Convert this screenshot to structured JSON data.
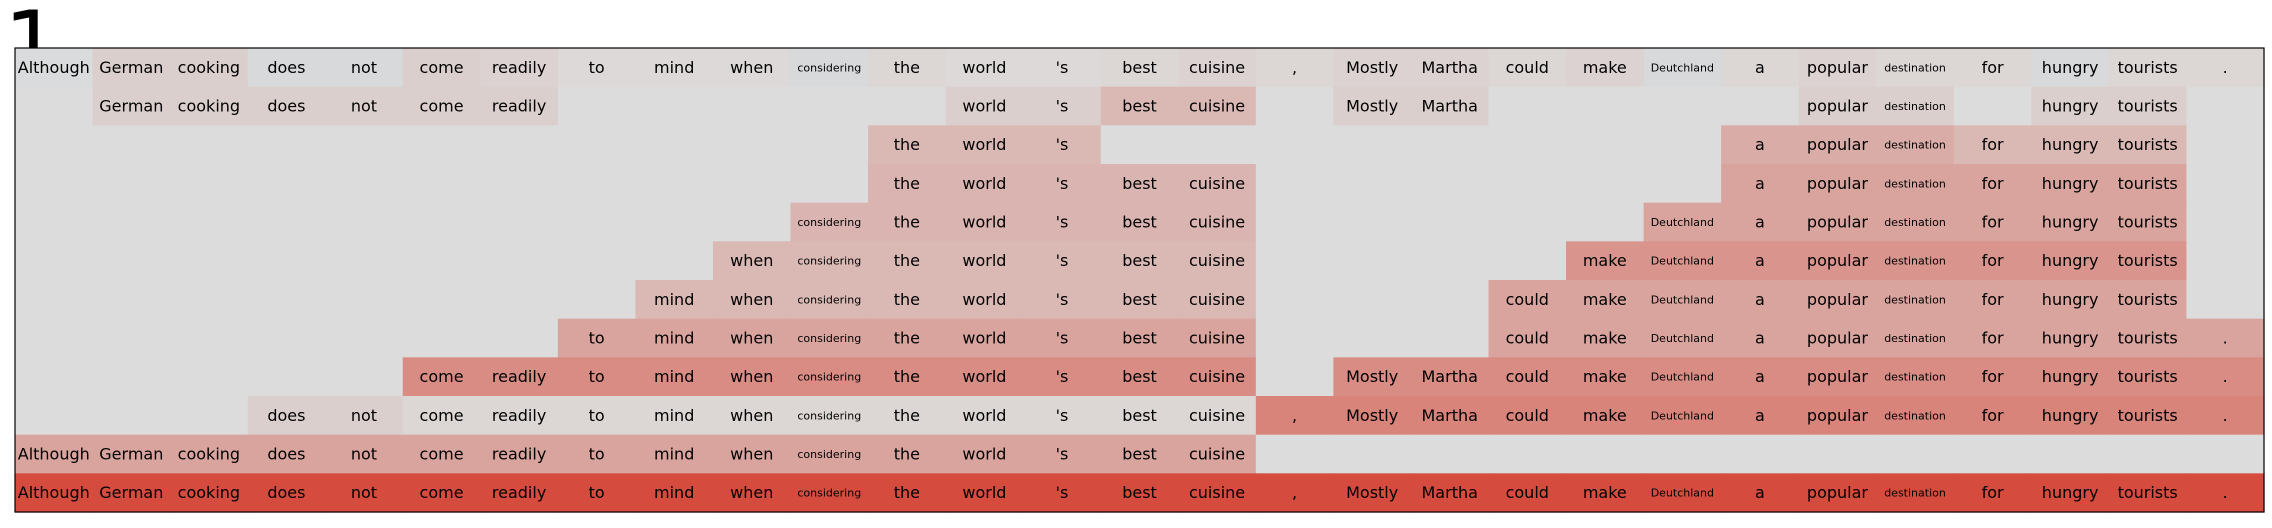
{
  "panel_label": "1",
  "chart_data": {
    "type": "heatmap",
    "title": "",
    "xlabel": "",
    "ylabel": "",
    "tokens": [
      "Although",
      "German",
      "cooking",
      "does",
      "not",
      "come",
      "readily",
      "to",
      "mind",
      "when",
      "considering",
      "the",
      "world",
      "'s",
      "best",
      "cuisine",
      ",",
      "Mostly",
      "Martha",
      "could",
      "make",
      "Deutchland",
      "a",
      "popular",
      "destination",
      "for",
      "hungry",
      "tourists",
      "."
    ],
    "scale": {
      "min": -1,
      "max": 1,
      "negative_color": "#b9c6d6",
      "neutral_color": "#dcdcdc",
      "positive_color": "#d43c2c"
    },
    "rows": [
      {
        "spans": [
          {
            "start": 0,
            "end": 28
          }
        ],
        "scores": [
          -0.05,
          0.08,
          0.08,
          -0.12,
          -0.12,
          0.08,
          0.06,
          0.02,
          0.02,
          0.02,
          -0.15,
          0.04,
          0.02,
          0.02,
          0.04,
          0.06,
          0.04,
          0.06,
          0.06,
          0.04,
          0.06,
          -0.15,
          0.04,
          0.06,
          0.04,
          0.04,
          -0.12,
          0.04,
          0.04
        ]
      },
      {
        "spans": [
          {
            "start": 1,
            "end": 6
          },
          {
            "start": 12,
            "end": 15
          },
          {
            "start": 17,
            "end": 18
          },
          {
            "start": 23,
            "end": 24
          },
          {
            "start": 26,
            "end": 27
          }
        ],
        "scores": [
          0,
          0.08,
          0.08,
          0.08,
          0.08,
          0.08,
          0.08,
          0,
          0,
          0,
          0,
          0,
          0.08,
          0.08,
          0.22,
          0.22,
          0,
          0.08,
          0.08,
          0,
          0,
          0,
          0,
          0.08,
          0.08,
          0,
          0.08,
          0.08,
          0
        ]
      },
      {
        "spans": [
          {
            "start": 11,
            "end": 13
          },
          {
            "start": 22,
            "end": 27
          }
        ],
        "scores": [
          0,
          0,
          0,
          0,
          0,
          0,
          0,
          0,
          0,
          0,
          0,
          0.22,
          0.22,
          0.22,
          0,
          0,
          0,
          0,
          0,
          0,
          0,
          0,
          0.3,
          0.3,
          0.3,
          0.22,
          0.22,
          0.22,
          0
        ]
      },
      {
        "spans": [
          {
            "start": 11,
            "end": 15
          },
          {
            "start": 22,
            "end": 27
          }
        ],
        "scores": [
          0,
          0,
          0,
          0,
          0,
          0,
          0,
          0,
          0,
          0,
          0,
          0.25,
          0.25,
          0.25,
          0.25,
          0.25,
          0,
          0,
          0,
          0,
          0,
          0,
          0.35,
          0.35,
          0.35,
          0.35,
          0.35,
          0.35,
          0
        ]
      },
      {
        "spans": [
          {
            "start": 10,
            "end": 15
          },
          {
            "start": 21,
            "end": 27
          }
        ],
        "scores": [
          0,
          0,
          0,
          0,
          0,
          0,
          0,
          0,
          0,
          0,
          0.25,
          0.25,
          0.25,
          0.25,
          0.25,
          0.25,
          0,
          0,
          0,
          0,
          0,
          0.35,
          0.35,
          0.35,
          0.35,
          0.35,
          0.35,
          0.35,
          0
        ]
      },
      {
        "spans": [
          {
            "start": 9,
            "end": 15
          },
          {
            "start": 20,
            "end": 27
          }
        ],
        "scores": [
          0,
          0,
          0,
          0,
          0,
          0,
          0,
          0,
          0,
          0.22,
          0.22,
          0.22,
          0.22,
          0.22,
          0.22,
          0.22,
          0,
          0,
          0,
          0,
          0.45,
          0.45,
          0.45,
          0.45,
          0.45,
          0.45,
          0.45,
          0.45,
          0
        ]
      },
      {
        "spans": [
          {
            "start": 8,
            "end": 15
          },
          {
            "start": 19,
            "end": 27
          }
        ],
        "scores": [
          0,
          0,
          0,
          0,
          0,
          0,
          0,
          0,
          0.22,
          0.22,
          0.22,
          0.22,
          0.22,
          0.22,
          0.22,
          0.22,
          0,
          0,
          0,
          0.35,
          0.35,
          0.35,
          0.35,
          0.35,
          0.35,
          0.35,
          0.35,
          0.35,
          0
        ]
      },
      {
        "spans": [
          {
            "start": 7,
            "end": 15
          },
          {
            "start": 19,
            "end": 28
          }
        ],
        "scores": [
          0,
          0,
          0,
          0,
          0,
          0,
          0,
          0.35,
          0.35,
          0.35,
          0.35,
          0.35,
          0.35,
          0.35,
          0.35,
          0.35,
          0,
          0,
          0,
          0.35,
          0.35,
          0.35,
          0.35,
          0.35,
          0.35,
          0.35,
          0.35,
          0.35,
          0.35
        ]
      },
      {
        "spans": [
          {
            "start": 5,
            "end": 15
          },
          {
            "start": 17,
            "end": 28
          }
        ],
        "scores": [
          0,
          0,
          0,
          0,
          0,
          0.5,
          0.5,
          0.5,
          0.5,
          0.5,
          0.5,
          0.5,
          0.5,
          0.5,
          0.5,
          0.5,
          0,
          0.5,
          0.5,
          0.5,
          0.5,
          0.5,
          0.5,
          0.5,
          0.5,
          0.5,
          0.5,
          0.5,
          0.5
        ]
      },
      {
        "spans": [
          {
            "start": 3,
            "end": 28
          }
        ],
        "scores": [
          0,
          0,
          0,
          0.08,
          0.08,
          0.04,
          0.04,
          0.04,
          0.04,
          0.04,
          0.04,
          0.04,
          0.04,
          0.04,
          0.04,
          0.04,
          0.55,
          0.55,
          0.55,
          0.55,
          0.55,
          0.55,
          0.55,
          0.55,
          0.55,
          0.55,
          0.55,
          0.55,
          0.55
        ]
      },
      {
        "spans": [
          {
            "start": 0,
            "end": 15
          }
        ],
        "scores": [
          0.35,
          0.35,
          0.35,
          0.35,
          0.35,
          0.35,
          0.35,
          0.35,
          0.35,
          0.35,
          0.35,
          0.35,
          0.35,
          0.35,
          0.35,
          0.35,
          0,
          0,
          0,
          0,
          0,
          0,
          0,
          0,
          0,
          0,
          0,
          0,
          0
        ]
      },
      {
        "spans": [
          {
            "start": 0,
            "end": 28
          }
        ],
        "scores": [
          0.9,
          0.9,
          0.9,
          0.9,
          0.9,
          0.9,
          0.9,
          0.9,
          0.9,
          0.9,
          0.9,
          0.9,
          0.9,
          0.9,
          0.9,
          0.9,
          0.9,
          0.9,
          0.9,
          0.9,
          0.9,
          0.9,
          0.9,
          0.9,
          0.9,
          0.9,
          0.9,
          0.9,
          0.9
        ]
      }
    ]
  }
}
